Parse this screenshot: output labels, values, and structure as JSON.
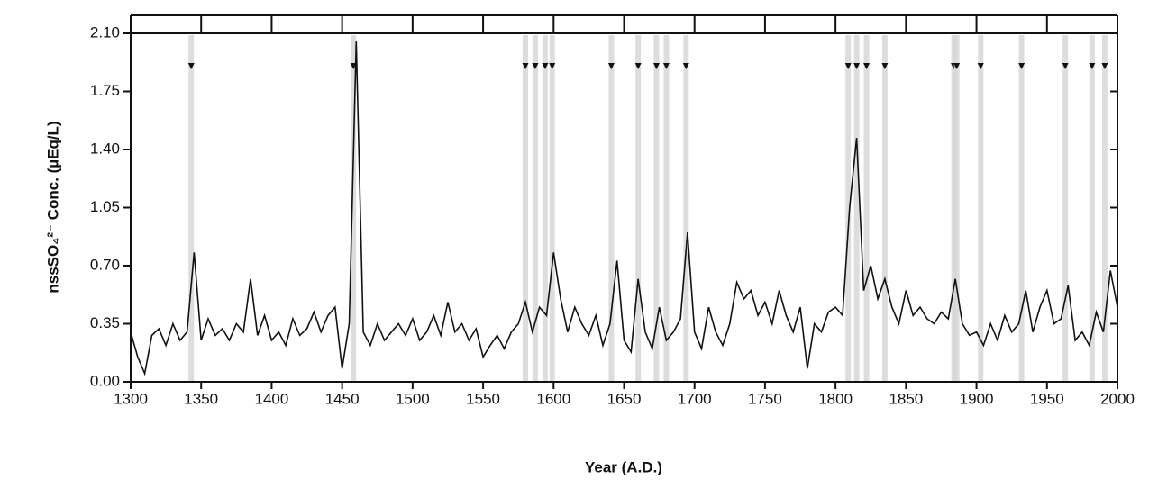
{
  "chart_data": {
    "type": "line",
    "xlabel": "Year (A.D.)",
    "ylabel": "nssSO₄²⁻ Conc. (µEq/L)",
    "x": [
      1300,
      1305,
      1310,
      1315,
      1320,
      1325,
      1330,
      1335,
      1340,
      1345,
      1350,
      1355,
      1360,
      1365,
      1370,
      1375,
      1380,
      1385,
      1390,
      1395,
      1400,
      1405,
      1410,
      1415,
      1420,
      1425,
      1430,
      1435,
      1440,
      1445,
      1450,
      1455,
      1460,
      1465,
      1470,
      1475,
      1480,
      1485,
      1490,
      1495,
      1500,
      1505,
      1510,
      1515,
      1520,
      1525,
      1530,
      1535,
      1540,
      1545,
      1550,
      1555,
      1560,
      1565,
      1570,
      1575,
      1580,
      1585,
      1590,
      1595,
      1600,
      1605,
      1610,
      1615,
      1620,
      1625,
      1630,
      1635,
      1640,
      1645,
      1650,
      1655,
      1660,
      1665,
      1670,
      1675,
      1680,
      1685,
      1690,
      1695,
      1700,
      1705,
      1710,
      1715,
      1720,
      1725,
      1730,
      1735,
      1740,
      1745,
      1750,
      1755,
      1760,
      1765,
      1770,
      1775,
      1780,
      1785,
      1790,
      1795,
      1800,
      1805,
      1810,
      1815,
      1820,
      1825,
      1830,
      1835,
      1840,
      1845,
      1850,
      1855,
      1860,
      1865,
      1870,
      1875,
      1880,
      1885,
      1890,
      1895,
      1900,
      1905,
      1910,
      1915,
      1920,
      1925,
      1930,
      1935,
      1940,
      1945,
      1950,
      1955,
      1960,
      1965,
      1970,
      1975,
      1980,
      1985,
      1990,
      1995,
      2000
    ],
    "series": [
      {
        "name": "nssSO4",
        "color": "#111111",
        "values": [
          0.3,
          0.15,
          0.05,
          0.28,
          0.32,
          0.22,
          0.35,
          0.25,
          0.3,
          0.78,
          0.25,
          0.38,
          0.28,
          0.32,
          0.25,
          0.35,
          0.3,
          0.62,
          0.28,
          0.4,
          0.25,
          0.3,
          0.22,
          0.38,
          0.28,
          0.32,
          0.42,
          0.3,
          0.4,
          0.45,
          0.08,
          0.35,
          2.05,
          0.3,
          0.22,
          0.35,
          0.25,
          0.3,
          0.35,
          0.28,
          0.38,
          0.25,
          0.3,
          0.4,
          0.28,
          0.48,
          0.3,
          0.35,
          0.25,
          0.32,
          0.15,
          0.22,
          0.28,
          0.2,
          0.3,
          0.35,
          0.48,
          0.3,
          0.45,
          0.4,
          0.78,
          0.5,
          0.3,
          0.45,
          0.35,
          0.28,
          0.4,
          0.22,
          0.35,
          0.73,
          0.25,
          0.18,
          0.62,
          0.3,
          0.2,
          0.45,
          0.25,
          0.3,
          0.38,
          0.9,
          0.3,
          0.2,
          0.45,
          0.3,
          0.22,
          0.35,
          0.6,
          0.5,
          0.55,
          0.4,
          0.48,
          0.35,
          0.55,
          0.4,
          0.3,
          0.45,
          0.08,
          0.35,
          0.3,
          0.42,
          0.45,
          0.4,
          1.05,
          1.47,
          0.55,
          0.7,
          0.5,
          0.62,
          0.45,
          0.35,
          0.55,
          0.4,
          0.45,
          0.38,
          0.35,
          0.42,
          0.38,
          0.62,
          0.35,
          0.28,
          0.3,
          0.22,
          0.35,
          0.25,
          0.4,
          0.3,
          0.35,
          0.55,
          0.3,
          0.45,
          0.55,
          0.35,
          0.38,
          0.58,
          0.25,
          0.3,
          0.22,
          0.42,
          0.3,
          0.67,
          0.45
        ]
      }
    ],
    "events": [
      1343,
      1458,
      1580,
      1587,
      1594,
      1599,
      1641,
      1660,
      1673,
      1680,
      1694,
      1809,
      1815,
      1822,
      1835,
      1884,
      1886,
      1903,
      1932,
      1963,
      1982,
      1991
    ],
    "xlim": [
      1300,
      2000
    ],
    "xticks": [
      1300,
      1350,
      1400,
      1450,
      1500,
      1550,
      1600,
      1650,
      1700,
      1750,
      1800,
      1850,
      1900,
      1950,
      2000
    ],
    "ylim": [
      0,
      2.1
    ],
    "yticks": [
      {
        "value": 0,
        "label": "0.00"
      },
      0.35,
      {
        "value": 0.7,
        "label": "0.70"
      },
      1.05,
      {
        "value": 1.4,
        "label": "1.40"
      },
      1.75,
      {
        "value": 2.1,
        "label": "2.10"
      }
    ]
  }
}
